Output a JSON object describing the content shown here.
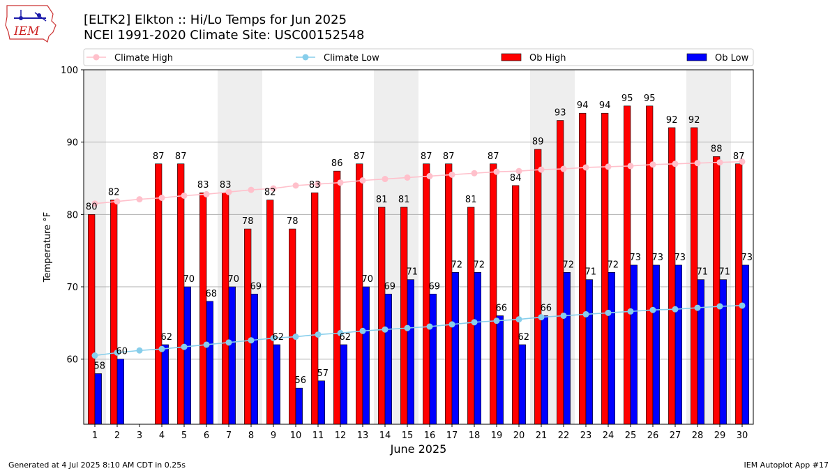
{
  "header": {
    "logo_text": "IEM",
    "title_line1": "[ELTK2] Elkton :: Hi/Lo Temps for Jun 2025",
    "title_line2": "NCEI 1991-2020 Climate Site: USC00152548"
  },
  "footer": {
    "left": "Generated at 4 Jul 2025 8:10 AM CDT in 0.25s",
    "right": "IEM Autoplot App #17"
  },
  "colors": {
    "ob_high": "#ff0000",
    "ob_low": "#0000ff",
    "climate_high": "#ffc0cb",
    "climate_low": "#87ceeb",
    "weekend_band": "#eeeeee"
  },
  "chart_data": {
    "type": "bar",
    "xlabel": "June 2025",
    "ylabel": "Temperature °F",
    "ylim": [
      51,
      100
    ],
    "yticks": [
      60,
      70,
      80,
      90,
      100
    ],
    "grid": "horizontal",
    "legend_position": "top",
    "categories": [
      "1",
      "2",
      "3",
      "4",
      "5",
      "6",
      "7",
      "8",
      "9",
      "10",
      "11",
      "12",
      "13",
      "14",
      "15",
      "16",
      "17",
      "18",
      "19",
      "20",
      "21",
      "22",
      "23",
      "24",
      "25",
      "26",
      "27",
      "28",
      "29",
      "30"
    ],
    "shaded_days": [
      [
        1,
        1
      ],
      [
        7,
        8
      ],
      [
        14,
        15
      ],
      [
        21,
        22
      ],
      [
        28,
        29
      ]
    ],
    "series": [
      {
        "name": "Ob High",
        "kind": "bar",
        "values": [
          80,
          82,
          null,
          87,
          87,
          83,
          83,
          78,
          82,
          78,
          83,
          86,
          87,
          81,
          81,
          87,
          87,
          81,
          87,
          84,
          89,
          93,
          94,
          94,
          95,
          95,
          92,
          92,
          88,
          87
        ]
      },
      {
        "name": "Ob Low",
        "kind": "bar",
        "values": [
          58,
          60,
          null,
          62,
          70,
          68,
          70,
          69,
          62,
          56,
          57,
          62,
          70,
          69,
          71,
          69,
          72,
          72,
          66,
          62,
          66,
          72,
          71,
          72,
          73,
          73,
          73,
          71,
          71,
          73
        ]
      },
      {
        "name": "Climate High",
        "kind": "line",
        "values": [
          81.5,
          81.8,
          82.1,
          82.3,
          82.6,
          82.8,
          83.1,
          83.4,
          83.6,
          84.0,
          84.2,
          84.4,
          84.7,
          84.9,
          85.1,
          85.3,
          85.5,
          85.7,
          85.9,
          86.0,
          86.2,
          86.3,
          86.5,
          86.6,
          86.7,
          86.9,
          87.0,
          87.1,
          87.2,
          87.3
        ]
      },
      {
        "name": "Climate Low",
        "kind": "line",
        "values": [
          60.5,
          60.9,
          61.2,
          61.4,
          61.7,
          62.0,
          62.3,
          62.6,
          62.9,
          63.1,
          63.4,
          63.6,
          63.9,
          64.1,
          64.3,
          64.5,
          64.8,
          65.1,
          65.3,
          65.5,
          65.8,
          66.0,
          66.2,
          66.4,
          66.6,
          66.8,
          66.9,
          67.1,
          67.3,
          67.4
        ]
      }
    ]
  }
}
